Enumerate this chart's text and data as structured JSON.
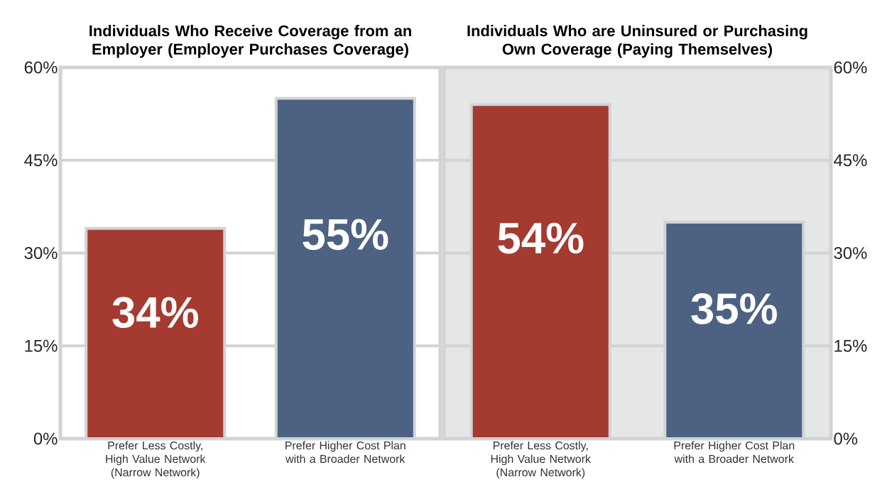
{
  "chart_data": [
    {
      "type": "bar",
      "title": "Individuals Who Receive Coverage from an Employer (Employer Purchases Coverage)",
      "categories": [
        "Prefer Less Costly, High Value Network (Narrow Network)",
        "Prefer Higher Cost Plan with a Broader Network"
      ],
      "values": [
        34,
        55
      ],
      "colors": [
        "#a53a30",
        "#4d6282"
      ],
      "value_labels": [
        "34%",
        "55%"
      ],
      "ylim": [
        0,
        60
      ],
      "yticks": [
        {
          "value": 0,
          "label": "0%"
        },
        {
          "value": 15,
          "label": "15%"
        },
        {
          "value": 30,
          "label": "30%"
        },
        {
          "value": 45,
          "label": "45%"
        },
        {
          "value": 60,
          "label": "60%"
        }
      ],
      "grid": "y"
    },
    {
      "type": "bar",
      "title": "Individuals Who are Uninsured or Purchasing Own Coverage (Paying Themselves)",
      "categories": [
        "Prefer Less Costly, High Value Network (Narrow Network)",
        "Prefer Higher Cost Plan with a Broader Network"
      ],
      "values": [
        54,
        35
      ],
      "colors": [
        "#a53a30",
        "#4d6282"
      ],
      "value_labels": [
        "54%",
        "35%"
      ],
      "ylim": [
        0,
        60
      ],
      "yticks": [
        {
          "value": 0,
          "label": "0%"
        },
        {
          "value": 15,
          "label": "15%"
        },
        {
          "value": 30,
          "label": "30%"
        },
        {
          "value": 45,
          "label": "45%"
        },
        {
          "value": 60,
          "label": "60%"
        }
      ],
      "grid": "y"
    }
  ]
}
